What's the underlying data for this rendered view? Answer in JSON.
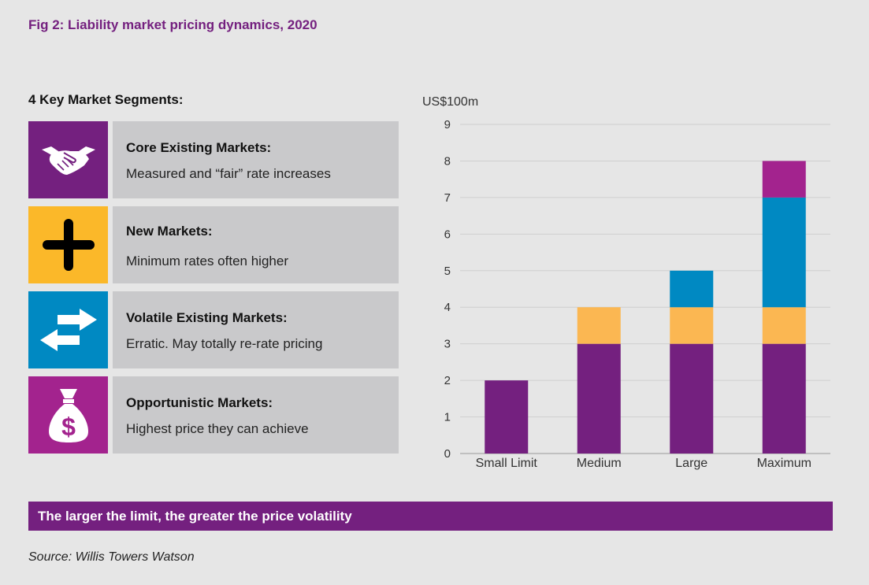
{
  "title": "Fig 2: Liability market pricing dynamics, 2020",
  "segments_heading": "4 Key Market Segments:",
  "segments": [
    {
      "name": "Core Existing Markets:",
      "description": "Measured and “fair” rate increases",
      "icon": "handshake-icon",
      "color": "#74207f"
    },
    {
      "name": "New Markets:",
      "description": "Minimum rates often higher",
      "icon": "plus-icon",
      "color": "#fbb829"
    },
    {
      "name": "Volatile Existing Markets:",
      "description": "Erratic. May totally re-rate pricing",
      "icon": "swap-arrows-icon",
      "color": "#0089c2"
    },
    {
      "name": "Opportunistic Markets:",
      "description": "Highest price they can achieve",
      "icon": "money-bag-icon",
      "color": "#a3238e"
    }
  ],
  "chart_data": {
    "type": "bar",
    "stacked": true,
    "ylabel": "US$100m",
    "ylim": [
      0,
      9
    ],
    "yticks": [
      0,
      1,
      2,
      3,
      4,
      5,
      6,
      7,
      8,
      9
    ],
    "grid": true,
    "categories": [
      "Small Limit",
      "Medium",
      "Large",
      "Maximum"
    ],
    "series": [
      {
        "values": [
          2,
          3,
          3,
          3
        ],
        "color": "#74207f"
      },
      {
        "values": [
          0,
          1,
          1,
          1
        ],
        "color": "#fbb752"
      },
      {
        "values": [
          0,
          0,
          1,
          3
        ],
        "color": "#0089c2"
      },
      {
        "values": [
          0,
          0,
          0,
          1
        ],
        "color": "#a3238e"
      }
    ]
  },
  "banner": "The larger the limit, the greater the price volatility",
  "source": "Source: Willis Towers Watson"
}
